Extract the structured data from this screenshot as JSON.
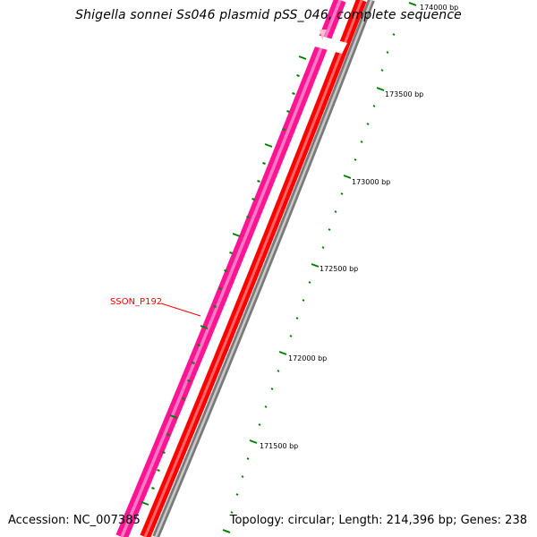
{
  "title": "Shigella sonnei Ss046 plasmid pSS_046, complete sequence",
  "footer": {
    "accession": "Accession: NC_007385",
    "summary": "Topology: circular; Length: 214,396 bp; Genes: 238"
  },
  "gene_label": "SSON_P192",
  "tick_labels": [
    "174000 bp",
    "173500 bp",
    "173000 bp",
    "172500 bp",
    "172000 bp",
    "171500 bp"
  ],
  "colors": {
    "outer_track": "#ff1493",
    "inner_track": "#ff0000",
    "backbone": "#808080",
    "ticks": "#008000",
    "gene_label": "#ff0000"
  }
}
